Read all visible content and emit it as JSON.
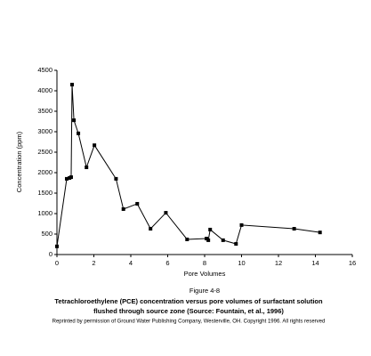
{
  "chart_data": {
    "type": "line",
    "figure_label": "Figure 4-8",
    "title": "Tetrachloroethylene (PCE) concentration versus pore volumes of surfactant solution",
    "subtitle": "flushed through source zone (Source: Fountain, et al., 1996)",
    "note": "Reprinted by permission of Ground Water Publishing Company, Westerville, OH. Copyright 1996. All rights reserved",
    "xlabel": "Pore Volumes",
    "ylabel": "Concentration (ppm)",
    "x": [
      0,
      0.53,
      0.68,
      0.77,
      0.82,
      0.92,
      1.16,
      1.6,
      2.03,
      3.2,
      3.6,
      4.35,
      5.07,
      5.9,
      7.05,
      8.1,
      8.2,
      8.3,
      9.0,
      9.7,
      10.0,
      12.85,
      14.25
    ],
    "series": [
      {
        "name": "PCE",
        "color": "#000000",
        "values": [
          200,
          1850,
          1870,
          1890,
          4150,
          3280,
          2960,
          2130,
          2670,
          1850,
          1110,
          1240,
          630,
          1020,
          370,
          390,
          350,
          610,
          350,
          260,
          720,
          630,
          540
        ]
      }
    ],
    "xlim": [
      0,
      16
    ],
    "xticks": [
      0,
      2,
      4,
      6,
      8,
      10,
      12,
      14,
      16
    ],
    "ylim": [
      0,
      4500
    ],
    "yticks": [
      0,
      500,
      1000,
      1500,
      2000,
      2500,
      3000,
      3500,
      4000,
      4500
    ],
    "grid": false
  }
}
